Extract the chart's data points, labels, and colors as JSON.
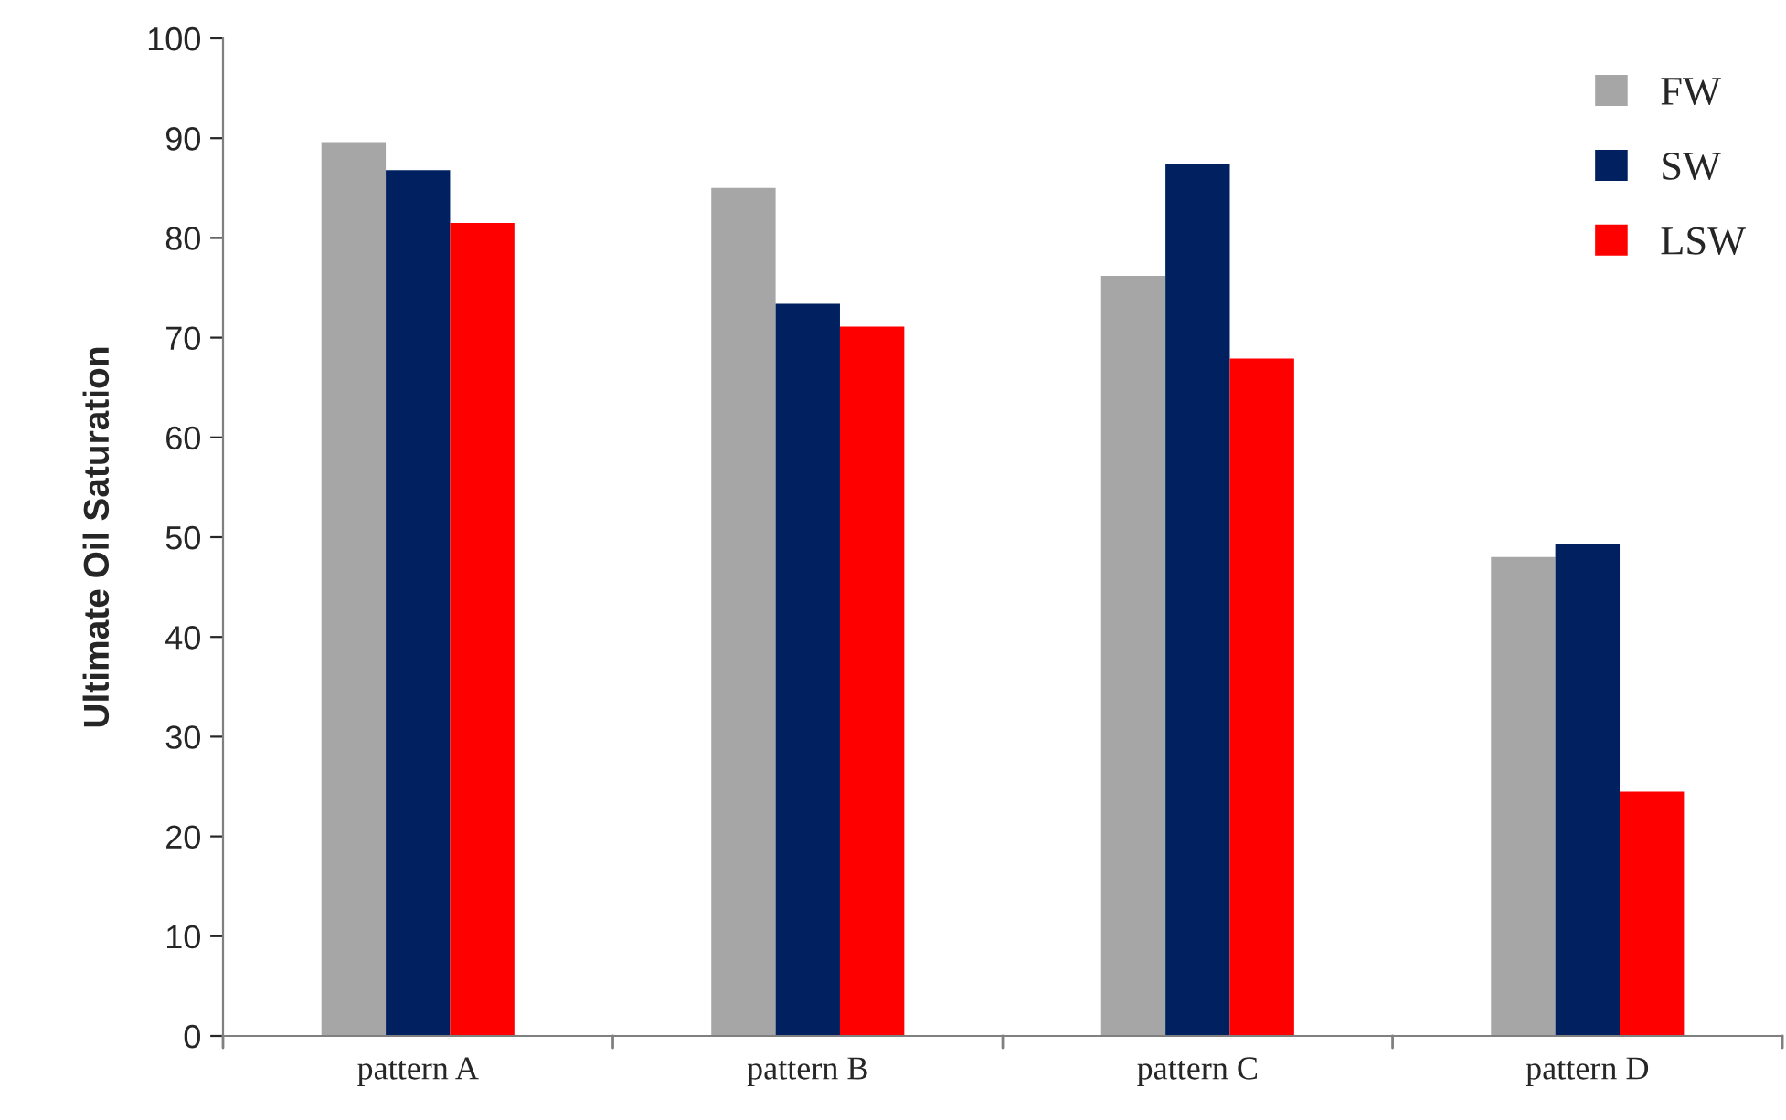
{
  "chart_data": {
    "type": "bar",
    "ylabel": "Ultimate Oil Saturation",
    "categories": [
      "pattern A",
      "pattern B",
      "pattern C",
      "pattern D"
    ],
    "series": [
      {
        "name": "FW",
        "color": "#a6a6a6",
        "values": [
          89.6,
          85.0,
          76.2,
          48.0
        ]
      },
      {
        "name": "SW",
        "color": "#002060",
        "values": [
          86.8,
          73.4,
          87.4,
          49.3
        ]
      },
      {
        "name": "LSW",
        "color": "#ff0000",
        "values": [
          81.5,
          71.1,
          67.9,
          24.5
        ]
      }
    ],
    "ylim": [
      0,
      100
    ],
    "yticks": [
      0,
      10,
      20,
      30,
      40,
      50,
      60,
      70,
      80,
      90,
      100
    ],
    "grid": false,
    "legend": "top right"
  }
}
